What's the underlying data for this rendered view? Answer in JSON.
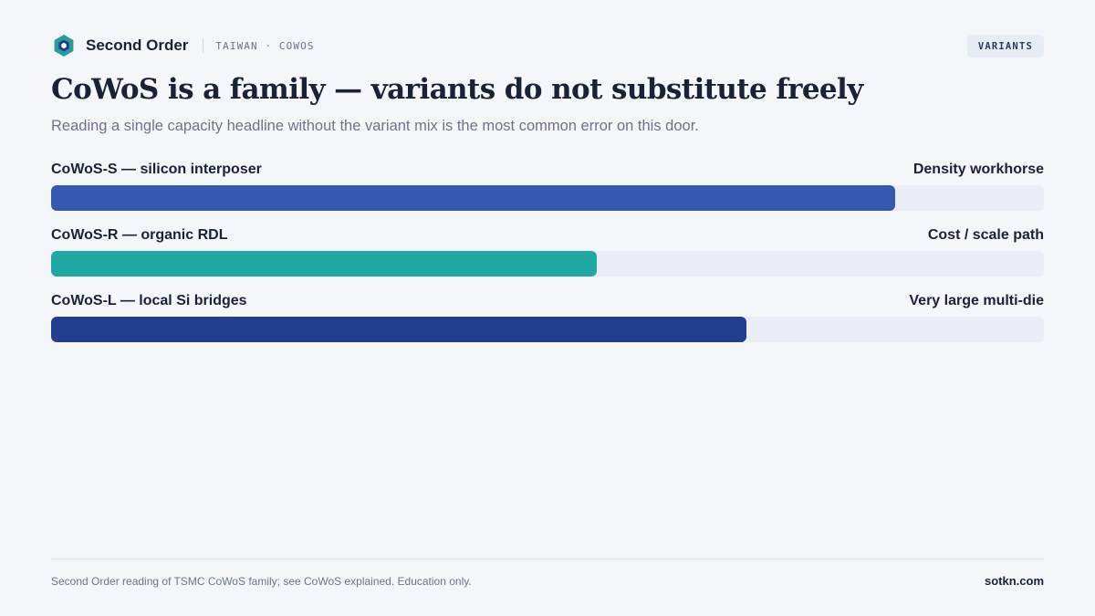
{
  "header": {
    "brand": "Second Order",
    "breadcrumb": "TAIWAN · COWOS",
    "badge": "VARIANTS",
    "logo_colors": {
      "outer": "#2a9d9a",
      "inner": "#1f3b8a"
    }
  },
  "title": "CoWoS is a family — variants do not substitute freely",
  "subtitle": "Reading a single capacity headline without the variant mix is the most common error on this door.",
  "chart_data": {
    "type": "bar",
    "orientation": "horizontal",
    "title": "CoWoS is a family — variants do not substitute freely",
    "xlim": [
      0,
      1
    ],
    "grid": false,
    "categories": [
      "CoWoS-S — silicon interposer",
      "CoWoS-R — organic RDL",
      "CoWoS-L — local Si bridges"
    ],
    "annotations": [
      "Density workhorse",
      "Cost / scale path",
      "Very large multi-die"
    ],
    "values": [
      0.85,
      0.55,
      0.7
    ],
    "colors": [
      "#3559b0",
      "#20a8a3",
      "#213e8f"
    ]
  },
  "footer": {
    "note": "Second Order reading of TSMC CoWoS family; see CoWoS explained. Education only.",
    "site": "sotkn.com"
  }
}
